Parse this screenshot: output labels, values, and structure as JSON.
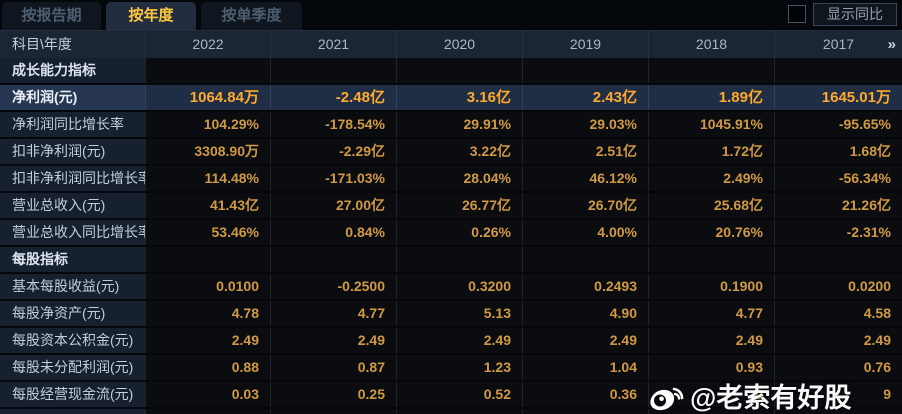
{
  "tabs": [
    {
      "label": "按报告期",
      "active": false
    },
    {
      "label": "按年度",
      "active": true
    },
    {
      "label": "按单季度",
      "active": false
    }
  ],
  "controls": {
    "show_yoy_label": "显示同比",
    "checkbox_checked": false
  },
  "table": {
    "corner_header": "科目\\年度",
    "years": [
      "2022",
      "2021",
      "2020",
      "2019",
      "2018",
      "2017"
    ],
    "more_icon": "»",
    "rows": [
      {
        "type": "section",
        "label": "成长能力指标",
        "values": [
          "",
          "",
          "",
          "",
          "",
          ""
        ]
      },
      {
        "type": "highlight",
        "label": "净利润(元)",
        "values": [
          "1064.84万",
          "-2.48亿",
          "3.16亿",
          "2.43亿",
          "1.89亿",
          "1645.01万"
        ]
      },
      {
        "type": "data",
        "label": "净利润同比增长率",
        "values": [
          "104.29%",
          "-178.54%",
          "29.91%",
          "29.03%",
          "1045.91%",
          "-95.65%"
        ]
      },
      {
        "type": "data",
        "label": "扣非净利润(元)",
        "values": [
          "3308.90万",
          "-2.29亿",
          "3.22亿",
          "2.51亿",
          "1.72亿",
          "1.68亿"
        ]
      },
      {
        "type": "data",
        "label": "扣非净利润同比增长率",
        "values": [
          "114.48%",
          "-171.03%",
          "28.04%",
          "46.12%",
          "2.49%",
          "-56.34%"
        ]
      },
      {
        "type": "data",
        "label": "营业总收入(元)",
        "values": [
          "41.43亿",
          "27.00亿",
          "26.77亿",
          "26.70亿",
          "25.68亿",
          "21.26亿"
        ]
      },
      {
        "type": "data",
        "label": "营业总收入同比增长率",
        "values": [
          "53.46%",
          "0.84%",
          "0.26%",
          "4.00%",
          "20.76%",
          "-2.31%"
        ]
      },
      {
        "type": "section",
        "label": "每股指标",
        "values": [
          "",
          "",
          "",
          "",
          "",
          ""
        ]
      },
      {
        "type": "data",
        "label": "基本每股收益(元)",
        "values": [
          "0.0100",
          "-0.2500",
          "0.3200",
          "0.2493",
          "0.1900",
          "0.0200"
        ]
      },
      {
        "type": "data",
        "label": "每股净资产(元)",
        "values": [
          "4.78",
          "4.77",
          "5.13",
          "4.90",
          "4.77",
          "4.58"
        ]
      },
      {
        "type": "data",
        "label": "每股资本公积金(元)",
        "values": [
          "2.49",
          "2.49",
          "2.49",
          "2.49",
          "2.49",
          "2.49"
        ]
      },
      {
        "type": "data",
        "label": "每股未分配利润(元)",
        "values": [
          "0.88",
          "0.87",
          "1.23",
          "1.04",
          "0.93",
          "0.76"
        ]
      },
      {
        "type": "data",
        "label": "每股经营现金流(元)",
        "values": [
          "0.03",
          "0.25",
          "0.52",
          "0.36",
          "0",
          "9"
        ],
        "note": "2018/2017 cells partially obscured by watermark"
      }
    ]
  },
  "watermark": {
    "icon": "weibo-icon",
    "text": "@老索有好股"
  },
  "colors": {
    "background": "#04070b",
    "header_bg": "#1b2534",
    "label_cell_bg": "#16202f",
    "value_cell_bg": "#0b0c0f",
    "highlight_row_bg": "#202e45",
    "value_text": "#d09944",
    "highlight_value_text": "#ffaa2e",
    "active_tab_text": "#ffc93e",
    "label_text": "#c3cedb"
  }
}
